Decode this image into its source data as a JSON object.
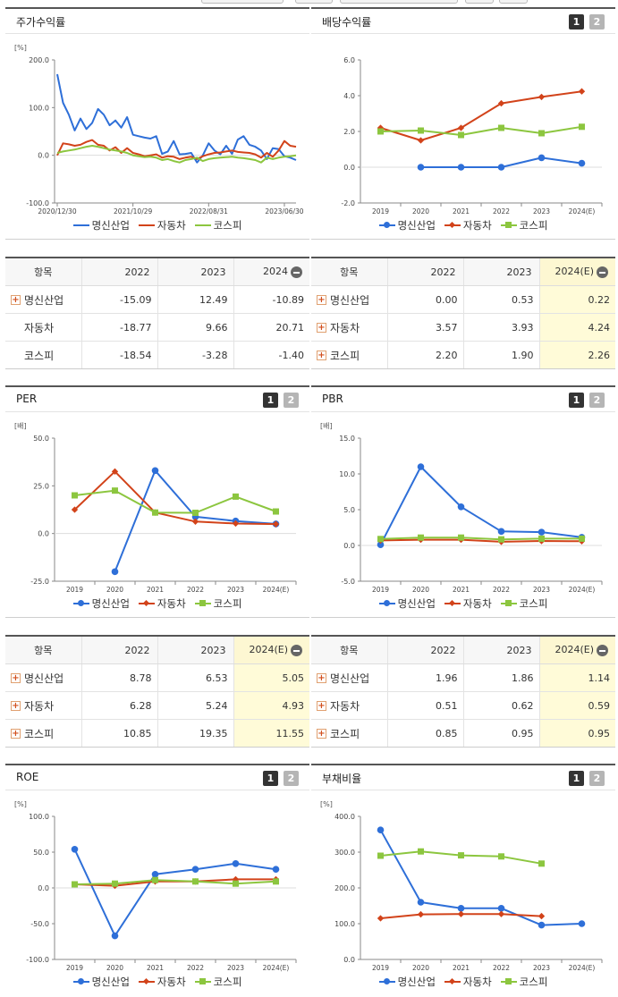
{
  "colors": {
    "blue": "#2e6fd8",
    "red": "#d2431a",
    "green": "#8cc63f"
  },
  "legend": [
    "명신산업",
    "자동차",
    "코스피"
  ],
  "panels": {
    "stock_return": {
      "title": "주가수익률",
      "unit": "[%]"
    },
    "dividend": {
      "title": "배당수익률",
      "unit": "",
      "page1": "1",
      "page2": "2"
    },
    "per": {
      "title": "PER",
      "unit": "[배]",
      "page1": "1",
      "page2": "2"
    },
    "pbr": {
      "title": "PBR",
      "unit": "[배]",
      "page1": "1",
      "page2": "2"
    },
    "roe": {
      "title": "ROE",
      "unit": "[%]",
      "page1": "1",
      "page2": "2"
    },
    "debt": {
      "title": "부채비율",
      "unit": "[%]",
      "page1": "1",
      "page2": "2"
    }
  },
  "tables": {
    "stock_return": {
      "header": [
        "항목",
        "2022",
        "2023",
        "2024"
      ],
      "rows": [
        {
          "name": "명신산업",
          "plus": true,
          "values": [
            "-15.09",
            "12.49",
            "-10.89"
          ]
        },
        {
          "name": "자동차",
          "plus": false,
          "values": [
            "-18.77",
            "9.66",
            "20.71"
          ]
        },
        {
          "name": "코스피",
          "plus": false,
          "values": [
            "-18.54",
            "-3.28",
            "-1.40"
          ]
        }
      ]
    },
    "dividend": {
      "header": [
        "항목",
        "2022",
        "2023",
        "2024(E)"
      ],
      "rows": [
        {
          "name": "명신산업",
          "plus": true,
          "values": [
            "0.00",
            "0.53",
            "0.22"
          ]
        },
        {
          "name": "자동차",
          "plus": true,
          "values": [
            "3.57",
            "3.93",
            "4.24"
          ]
        },
        {
          "name": "코스피",
          "plus": true,
          "values": [
            "2.20",
            "1.90",
            "2.26"
          ]
        }
      ]
    },
    "per": {
      "header": [
        "항목",
        "2022",
        "2023",
        "2024(E)"
      ],
      "rows": [
        {
          "name": "명신산업",
          "plus": true,
          "values": [
            "8.78",
            "6.53",
            "5.05"
          ]
        },
        {
          "name": "자동차",
          "plus": true,
          "values": [
            "6.28",
            "5.24",
            "4.93"
          ]
        },
        {
          "name": "코스피",
          "plus": true,
          "values": [
            "10.85",
            "19.35",
            "11.55"
          ]
        }
      ]
    },
    "pbr": {
      "header": [
        "항목",
        "2022",
        "2023",
        "2024(E)"
      ],
      "rows": [
        {
          "name": "명신산업",
          "plus": true,
          "values": [
            "1.96",
            "1.86",
            "1.14"
          ]
        },
        {
          "name": "자동차",
          "plus": true,
          "values": [
            "0.51",
            "0.62",
            "0.59"
          ]
        },
        {
          "name": "코스피",
          "plus": true,
          "values": [
            "0.85",
            "0.95",
            "0.95"
          ]
        }
      ]
    }
  },
  "chart_data": [
    {
      "id": "stock_return",
      "type": "line",
      "ylim": [
        -100,
        200
      ],
      "yticks": [
        "200.0",
        "100.0",
        "0.0",
        "-100.0"
      ],
      "yticks_values": [
        200,
        100,
        0,
        -100
      ],
      "xtick_labels": [
        "2020/12/30",
        "2021/10/29",
        "2022/08/31",
        "2023/06/30"
      ],
      "xtick_index": [
        0,
        13,
        26,
        39
      ],
      "series": [
        {
          "name": "명신산업",
          "color": "blue",
          "marker": "none",
          "values": [
            170,
            110,
            85,
            52,
            77,
            55,
            68,
            97,
            85,
            63,
            73,
            58,
            80,
            43,
            40,
            37,
            35,
            40,
            3,
            8,
            30,
            2,
            3,
            5,
            -15,
            0,
            25,
            10,
            2,
            20,
            3,
            33,
            40,
            22,
            18,
            10,
            -8,
            15,
            13,
            -2,
            -5,
            -10
          ]
        },
        {
          "name": "자동차",
          "color": "red",
          "marker": "none",
          "values": [
            0,
            25,
            23,
            20,
            22,
            28,
            32,
            22,
            20,
            10,
            17,
            5,
            15,
            5,
            2,
            -2,
            0,
            2,
            -5,
            -2,
            -3,
            -8,
            -5,
            -3,
            -8,
            -2,
            2,
            5,
            6,
            8,
            10,
            7,
            6,
            5,
            2,
            -5,
            5,
            -3,
            10,
            30,
            20,
            18
          ]
        },
        {
          "name": "코스피",
          "color": "green",
          "marker": "none",
          "values": [
            5,
            8,
            10,
            12,
            15,
            18,
            20,
            18,
            15,
            12,
            10,
            8,
            5,
            0,
            -2,
            -4,
            -3,
            -5,
            -10,
            -8,
            -12,
            -15,
            -10,
            -8,
            -5,
            -12,
            -8,
            -6,
            -5,
            -4,
            -3,
            -5,
            -6,
            -8,
            -10,
            -15,
            -5,
            -8,
            -5,
            -3,
            -2,
            0
          ]
        }
      ]
    },
    {
      "id": "dividend",
      "type": "line",
      "ylim": [
        -2,
        6
      ],
      "yticks": [
        "6.0",
        "4.0",
        "2.0",
        "0.0",
        "-2.0"
      ],
      "yticks_values": [
        6,
        4,
        2,
        0,
        -2
      ],
      "categories": [
        "2019",
        "2020",
        "2021",
        "2022",
        "2023",
        "2024(E)"
      ],
      "series": [
        {
          "name": "명신산업",
          "color": "blue",
          "marker": "dot",
          "values": [
            null,
            0.0,
            0.0,
            0.0,
            0.53,
            0.22
          ]
        },
        {
          "name": "자동차",
          "color": "red",
          "marker": "diamond",
          "values": [
            2.2,
            1.5,
            2.2,
            3.57,
            3.93,
            4.24
          ]
        },
        {
          "name": "코스피",
          "color": "green",
          "marker": "square",
          "values": [
            2.0,
            2.05,
            1.8,
            2.2,
            1.9,
            2.26
          ]
        }
      ]
    },
    {
      "id": "per",
      "type": "line",
      "ylim": [
        -25,
        50
      ],
      "yticks": [
        "50.0",
        "25.0",
        "0.0",
        "-25.0"
      ],
      "yticks_values": [
        50,
        25,
        0,
        -25
      ],
      "categories": [
        "2019",
        "2020",
        "2021",
        "2022",
        "2023",
        "2024(E)"
      ],
      "series": [
        {
          "name": "명신산업",
          "color": "blue",
          "marker": "dot",
          "values": [
            null,
            -20,
            33,
            8.78,
            6.53,
            5.05
          ]
        },
        {
          "name": "자동차",
          "color": "red",
          "marker": "diamond",
          "values": [
            12.5,
            32.5,
            11,
            6.28,
            5.24,
            4.93
          ]
        },
        {
          "name": "코스피",
          "color": "green",
          "marker": "square",
          "values": [
            20,
            22.5,
            11,
            10.85,
            19.35,
            11.55
          ]
        }
      ]
    },
    {
      "id": "pbr",
      "type": "line",
      "ylim": [
        -5,
        15
      ],
      "yticks": [
        "15.0",
        "10.0",
        "5.0",
        "0.0",
        "-5.0"
      ],
      "yticks_values": [
        15,
        10,
        5,
        0,
        -5
      ],
      "categories": [
        "2019",
        "2020",
        "2021",
        "2022",
        "2023",
        "2024(E)"
      ],
      "series": [
        {
          "name": "명신산업",
          "color": "blue",
          "marker": "dot",
          "values": [
            0.1,
            11,
            5.4,
            1.96,
            1.86,
            1.14
          ]
        },
        {
          "name": "자동차",
          "color": "red",
          "marker": "diamond",
          "values": [
            0.7,
            0.8,
            0.8,
            0.51,
            0.62,
            0.59
          ]
        },
        {
          "name": "코스피",
          "color": "green",
          "marker": "square",
          "values": [
            0.9,
            1.1,
            1.1,
            0.85,
            0.95,
            0.95
          ]
        }
      ]
    },
    {
      "id": "roe",
      "type": "line",
      "ylim": [
        -100,
        100
      ],
      "yticks": [
        "100.0",
        "50.0",
        "0.0",
        "-50.0",
        "-100.0"
      ],
      "yticks_values": [
        100,
        50,
        0,
        -50,
        -100
      ],
      "categories": [
        "2019",
        "2020",
        "2021",
        "2022",
        "2023",
        "2024(E)"
      ],
      "series": [
        {
          "name": "명신산업",
          "color": "blue",
          "marker": "dot",
          "values": [
            54,
            -67,
            19,
            26,
            34,
            26
          ]
        },
        {
          "name": "자동차",
          "color": "red",
          "marker": "diamond",
          "values": [
            5,
            3,
            9,
            9,
            12,
            12
          ]
        },
        {
          "name": "코스피",
          "color": "green",
          "marker": "square",
          "values": [
            5,
            6,
            11,
            9,
            6,
            9
          ]
        }
      ]
    },
    {
      "id": "debt",
      "type": "line",
      "ylim": [
        0,
        400
      ],
      "yticks": [
        "400.0",
        "300.0",
        "200.0",
        "100.0",
        "0.0"
      ],
      "yticks_values": [
        400,
        300,
        200,
        100,
        0
      ],
      "categories": [
        "2019",
        "2020",
        "2021",
        "2022",
        "2023",
        "2024(E)"
      ],
      "series": [
        {
          "name": "명신산업",
          "color": "blue",
          "marker": "dot",
          "values": [
            362,
            160,
            143,
            143,
            96,
            100
          ]
        },
        {
          "name": "자동차",
          "color": "red",
          "marker": "diamond",
          "values": [
            115,
            126,
            127,
            127,
            121,
            null
          ]
        },
        {
          "name": "코스피",
          "color": "green",
          "marker": "square",
          "values": [
            290,
            302,
            291,
            288,
            268,
            null
          ]
        }
      ]
    }
  ]
}
